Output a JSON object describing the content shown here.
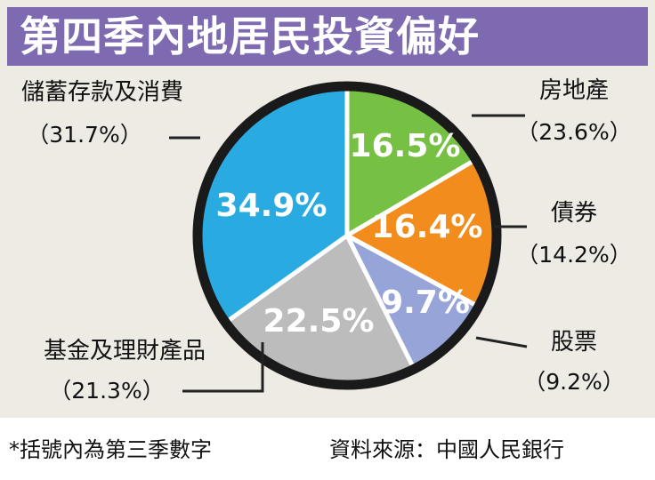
{
  "chart_data": {
    "type": "pie",
    "title": "第四季內地居民投資偏好",
    "slices": [
      {
        "category": "房地產",
        "value": 16.5,
        "prev_label": "（23.6%）",
        "color": "#76c043"
      },
      {
        "category": "債券",
        "value": 16.4,
        "prev_label": "（14.2%）",
        "color": "#f28c1c"
      },
      {
        "category": "股票",
        "value": 9.7,
        "prev_label": "（9.2%）",
        "color": "#97a4d8"
      },
      {
        "category": "基金及理財產品",
        "value": 22.5,
        "prev_label": "（21.3%）",
        "color": "#bcbcbc"
      },
      {
        "category": "儲蓄存款及消費",
        "value": 34.9,
        "prev_label": "（31.7%）",
        "color": "#29abe2"
      }
    ],
    "value_labels": [
      "16.5%",
      "16.4%",
      "9.7%",
      "22.5%",
      "34.9%"
    ]
  },
  "footer": {
    "note": "*括號內為第三季數字",
    "source": "資料來源：中國人民銀行"
  },
  "colors": {
    "title_bar": "#7e6ab0",
    "background": "#eeebe4",
    "outline": "#1a1a1a"
  }
}
